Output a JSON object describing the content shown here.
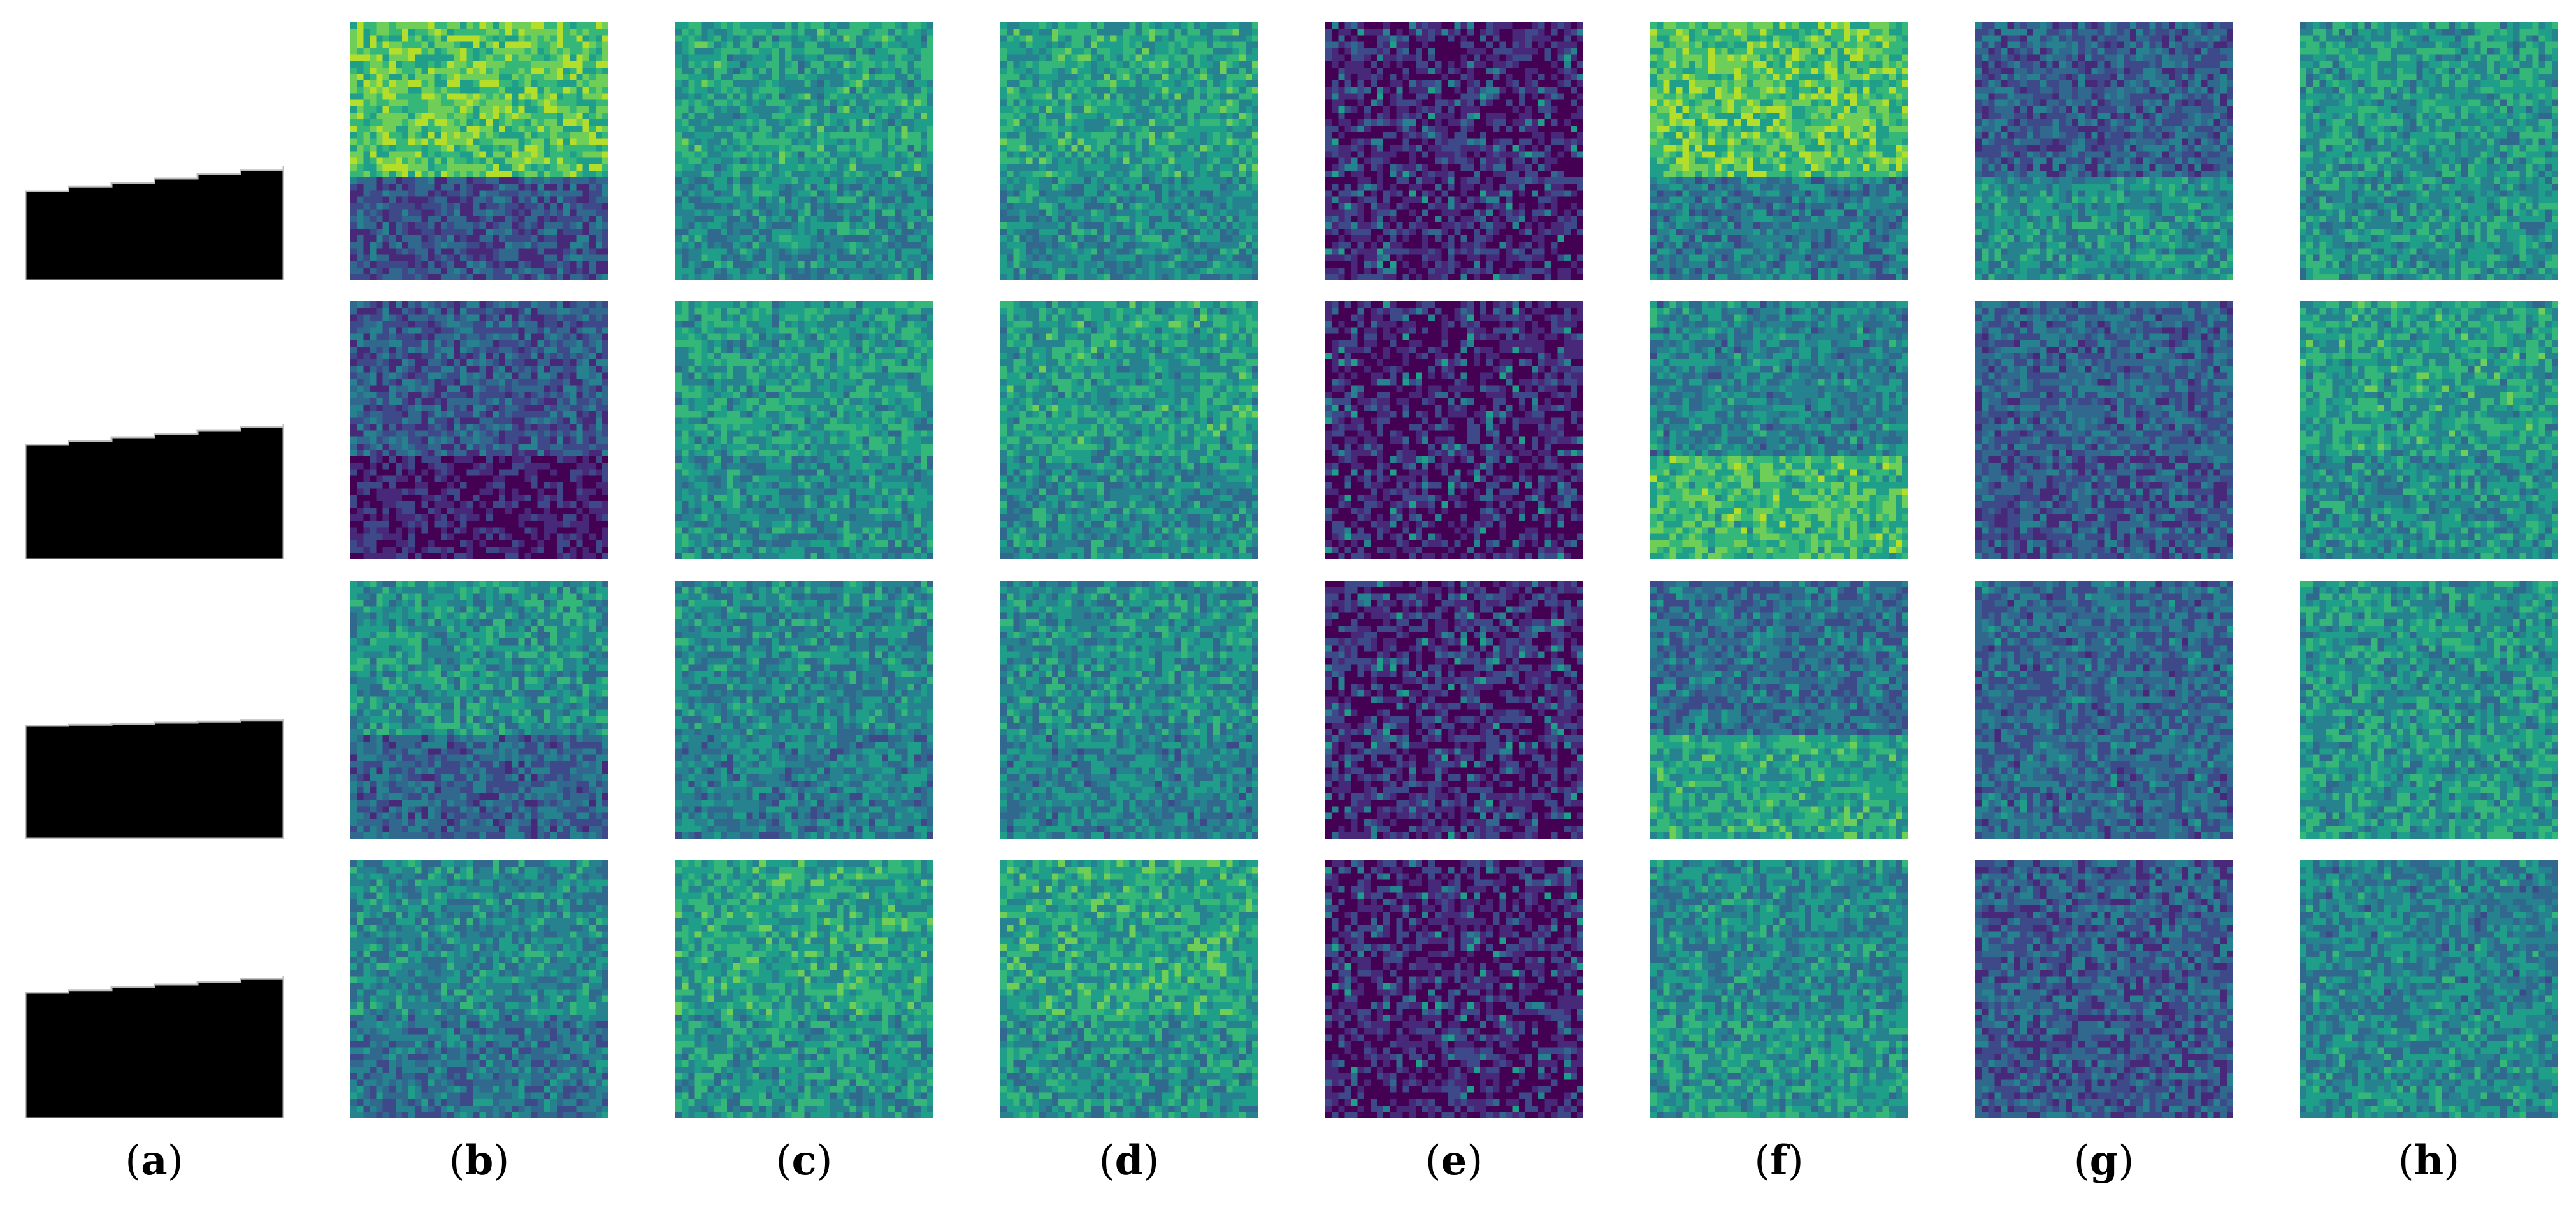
{
  "figure": {
    "column_labels": [
      {
        "open": "(",
        "letter": "a",
        "close": ")"
      },
      {
        "open": "(",
        "letter": "b",
        "close": ")"
      },
      {
        "open": "(",
        "letter": "c",
        "close": ")"
      },
      {
        "open": "(",
        "letter": "d",
        "close": ")"
      },
      {
        "open": "(",
        "letter": "e",
        "close": ")"
      },
      {
        "open": "(",
        "letter": "f",
        "close": ")"
      },
      {
        "open": "(",
        "letter": "g",
        "close": ")"
      },
      {
        "open": "(",
        "letter": "h",
        "close": ")"
      }
    ],
    "rows": 4,
    "colormap": "viridis",
    "palette": {
      "viridis": [
        "#440154",
        "#482878",
        "#3e4989",
        "#31688e",
        "#26828e",
        "#1f9e89",
        "#35b779",
        "#6ece58",
        "#b5de2b",
        "#fde725"
      ],
      "mask_fill": "#000000",
      "mask_background": "#ffffff",
      "mask_edge": "#bdbdbd"
    }
  }
}
